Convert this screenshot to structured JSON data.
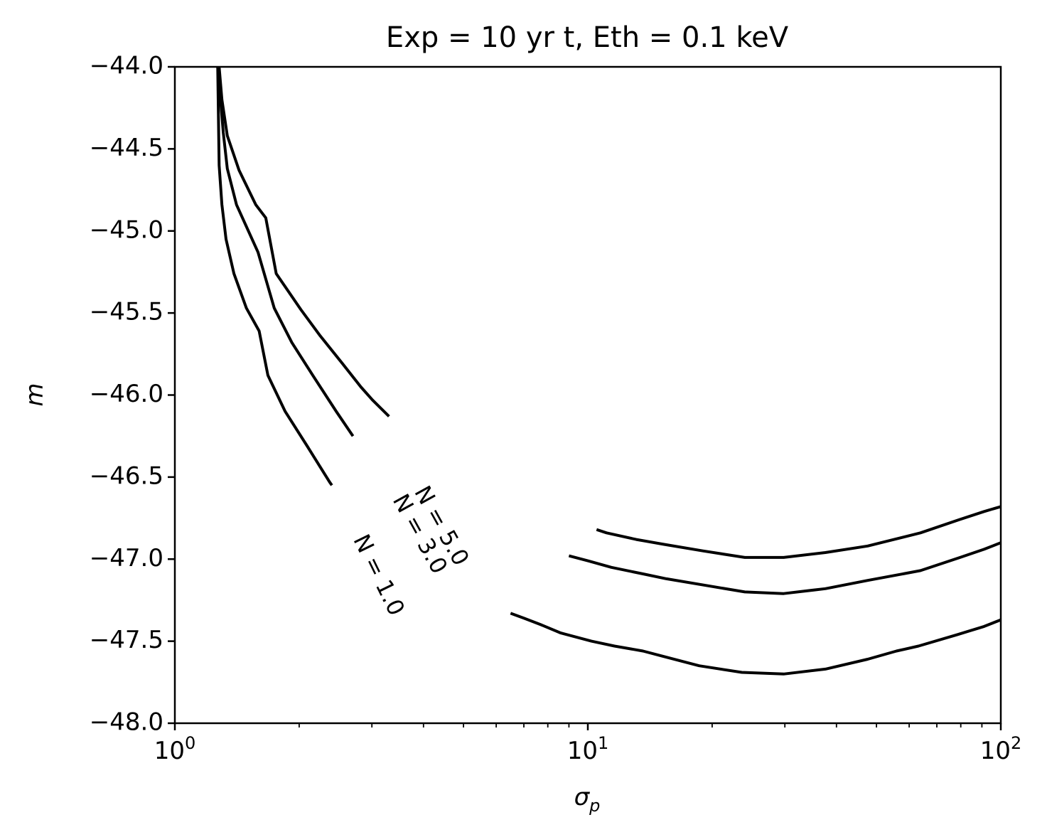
{
  "chart_data": {
    "type": "line",
    "title": "Exp = 10 yr t,  Eth = 0.1 keV",
    "xlabel_base": "σ",
    "xlabel_sub": "p",
    "ylabel": "m",
    "xscale": "log",
    "xlim": [
      1,
      100
    ],
    "ylim": [
      -48.0,
      -44.0
    ],
    "grid": false,
    "x_ticks": [
      {
        "base": "10",
        "exp": "0",
        "value": 1
      },
      {
        "base": "10",
        "exp": "1",
        "value": 10
      },
      {
        "base": "10",
        "exp": "2",
        "value": 100
      }
    ],
    "y_ticks": [
      {
        "label": "−44.0",
        "value": -44.0
      },
      {
        "label": "−44.5",
        "value": -44.5
      },
      {
        "label": "−45.0",
        "value": -45.0
      },
      {
        "label": "−45.5",
        "value": -45.5
      },
      {
        "label": "−46.0",
        "value": -46.0
      },
      {
        "label": "−46.5",
        "value": -46.5
      },
      {
        "label": "−47.0",
        "value": -47.0
      },
      {
        "label": "−47.5",
        "value": -47.5
      },
      {
        "label": "−48.0",
        "value": -48.0
      }
    ],
    "series": [
      {
        "name": "N = 1.0",
        "segments": [
          [
            [
              1.27,
              -44.0
            ],
            [
              1.28,
              -44.6
            ],
            [
              1.3,
              -44.84
            ],
            [
              1.33,
              -45.05
            ],
            [
              1.39,
              -45.26
            ],
            [
              1.49,
              -45.47
            ],
            [
              1.6,
              -45.61
            ],
            [
              1.68,
              -45.88
            ],
            [
              1.85,
              -46.1
            ],
            [
              2.09,
              -46.31
            ],
            [
              2.37,
              -46.53
            ],
            [
              2.4,
              -46.55
            ]
          ],
          [
            [
              6.5,
              -47.33
            ],
            [
              7.0,
              -47.36
            ],
            [
              7.7,
              -47.4
            ],
            [
              8.6,
              -47.45
            ],
            [
              10.2,
              -47.5
            ],
            [
              11.6,
              -47.53
            ],
            [
              13.6,
              -47.56
            ],
            [
              15.1,
              -47.59
            ],
            [
              18.6,
              -47.65
            ],
            [
              23.6,
              -47.69
            ],
            [
              29.8,
              -47.7
            ],
            [
              37.6,
              -47.67
            ],
            [
              47.6,
              -47.61
            ],
            [
              55.9,
              -47.56
            ],
            [
              63.2,
              -47.53
            ],
            [
              78.5,
              -47.46
            ],
            [
              91.1,
              -47.41
            ],
            [
              100,
              -47.37
            ]
          ]
        ]
      },
      {
        "name": "N = 3.0",
        "segments": [
          [
            [
              1.27,
              -44.0
            ],
            [
              1.29,
              -44.2
            ],
            [
              1.31,
              -44.4
            ],
            [
              1.34,
              -44.62
            ],
            [
              1.41,
              -44.84
            ],
            [
              1.59,
              -45.13
            ],
            [
              1.74,
              -45.47
            ],
            [
              1.92,
              -45.68
            ],
            [
              2.17,
              -45.89
            ],
            [
              2.46,
              -46.1
            ],
            [
              2.7,
              -46.25
            ]
          ],
          [
            [
              9.0,
              -46.98
            ],
            [
              10.0,
              -47.01
            ],
            [
              11.4,
              -47.05
            ],
            [
              13.6,
              -47.09
            ],
            [
              15.5,
              -47.12
            ],
            [
              19.3,
              -47.16
            ],
            [
              24.0,
              -47.2
            ],
            [
              29.8,
              -47.21
            ],
            [
              37.6,
              -47.18
            ],
            [
              47.6,
              -47.13
            ],
            [
              63.9,
              -47.07
            ],
            [
              79.7,
              -46.99
            ],
            [
              91.1,
              -46.94
            ],
            [
              100,
              -46.9
            ]
          ]
        ]
      },
      {
        "name": "N = 5.0",
        "segments": [
          [
            [
              1.28,
              -44.0
            ],
            [
              1.3,
              -44.2
            ],
            [
              1.34,
              -44.42
            ],
            [
              1.43,
              -44.63
            ],
            [
              1.57,
              -44.84
            ],
            [
              1.66,
              -44.92
            ],
            [
              1.76,
              -45.26
            ],
            [
              2.02,
              -45.48
            ],
            [
              2.25,
              -45.64
            ],
            [
              2.53,
              -45.8
            ],
            [
              2.82,
              -45.95
            ],
            [
              3.01,
              -46.03
            ],
            [
              3.3,
              -46.13
            ]
          ],
          [
            [
              10.5,
              -46.82
            ],
            [
              11.1,
              -46.84
            ],
            [
              13.1,
              -46.88
            ],
            [
              15.3,
              -46.91
            ],
            [
              19.0,
              -46.95
            ],
            [
              24.0,
              -46.99
            ],
            [
              29.8,
              -46.99
            ],
            [
              37.6,
              -46.96
            ],
            [
              47.6,
              -46.92
            ],
            [
              63.9,
              -46.84
            ],
            [
              79.2,
              -46.76
            ],
            [
              91.1,
              -46.71
            ],
            [
              100,
              -46.68
            ]
          ]
        ]
      }
    ],
    "annotations": [
      {
        "text": "N = 5.0",
        "x": 4.4,
        "y": -46.8,
        "rotate": 61
      },
      {
        "text": "N = 3.0",
        "x": 3.9,
        "y": -46.85,
        "rotate": 61
      },
      {
        "text": "N = 1.0",
        "x": 3.1,
        "y": -47.1,
        "rotate": 64
      }
    ]
  }
}
